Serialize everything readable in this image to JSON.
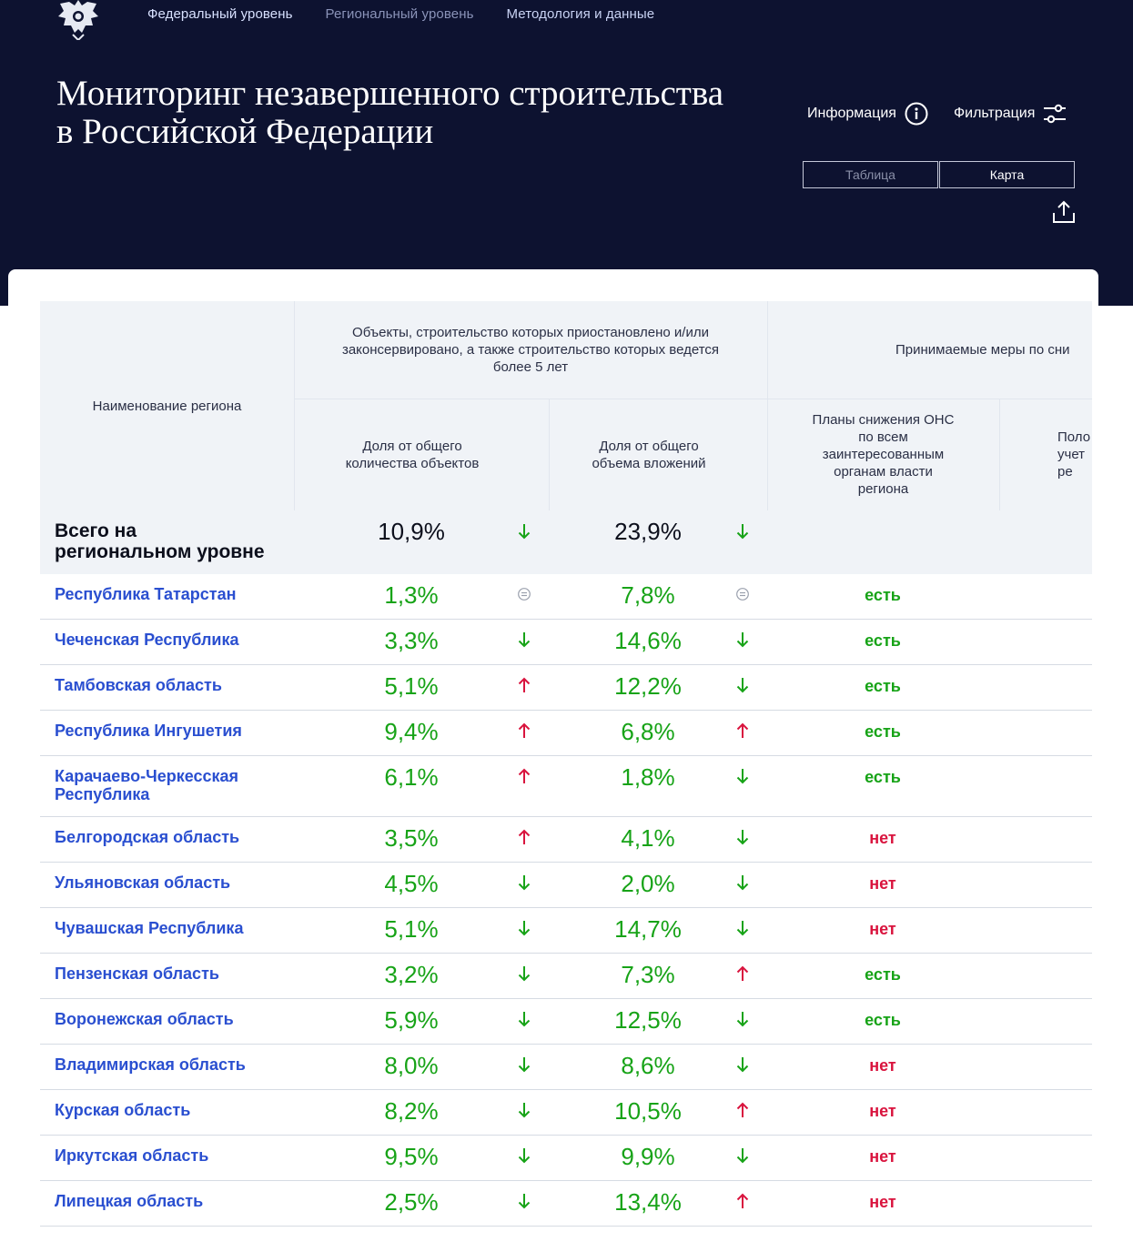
{
  "nav": {
    "federal": "Федеральный уровень",
    "regional": "Региональный уровень",
    "methodology": "Методология и данные"
  },
  "header": {
    "title_line1": "Мониторинг незавершенного строительства",
    "title_line2": "в Российской Федерации",
    "info_label": "Информация",
    "filter_label": "Фильтрация",
    "view_table": "Таблица",
    "view_map": "Карта"
  },
  "table": {
    "col_region": "Наименование региона",
    "group_objects": "Объекты, строительство которых приостановлено и/или законсервировано, а также строительство которых ведется более 5 лет",
    "group_measures": "Принимаемые меры по сни",
    "col_share_count": "Доля от общего количества объектов",
    "col_share_invest": "Доля от общего объема вложений",
    "col_plans": "Планы снижения ОНС по всем заинтересованным органам власти региона",
    "col_next": "Поло учет ре",
    "total": {
      "name_line1": "Всего на",
      "name_line2": "региональном уровне",
      "share_count": "10,9%",
      "share_count_trend": "down",
      "share_invest": "23,9%",
      "share_invest_trend": "down"
    },
    "rows": [
      {
        "region": "Республика Татарстан",
        "share_count": "1,3%",
        "count_trend": "equal",
        "share_invest": "7,8%",
        "invest_trend": "equal",
        "plans": "есть"
      },
      {
        "region": "Чеченская Республика",
        "share_count": "3,3%",
        "count_trend": "down",
        "share_invest": "14,6%",
        "invest_trend": "down",
        "plans": "есть"
      },
      {
        "region": "Тамбовская область",
        "share_count": "5,1%",
        "count_trend": "up",
        "share_invest": "12,2%",
        "invest_trend": "down",
        "plans": "есть"
      },
      {
        "region": "Республика Ингушетия",
        "share_count": "9,4%",
        "count_trend": "up",
        "share_invest": "6,8%",
        "invest_trend": "up",
        "plans": "есть"
      },
      {
        "region": "Карачаево-Черкесская Республика",
        "share_count": "6,1%",
        "count_trend": "up",
        "share_invest": "1,8%",
        "invest_trend": "down",
        "plans": "есть"
      },
      {
        "region": "Белгородская область",
        "share_count": "3,5%",
        "count_trend": "up",
        "share_invest": "4,1%",
        "invest_trend": "down",
        "plans": "нет"
      },
      {
        "region": "Ульяновская область",
        "share_count": "4,5%",
        "count_trend": "down",
        "share_invest": "2,0%",
        "invest_trend": "down",
        "plans": "нет"
      },
      {
        "region": "Чувашская Республика",
        "share_count": "5,1%",
        "count_trend": "down",
        "share_invest": "14,7%",
        "invest_trend": "down",
        "plans": "нет"
      },
      {
        "region": "Пензенская область",
        "share_count": "3,2%",
        "count_trend": "down",
        "share_invest": "7,3%",
        "invest_trend": "up",
        "plans": "есть"
      },
      {
        "region": "Воронежская область",
        "share_count": "5,9%",
        "count_trend": "down",
        "share_invest": "12,5%",
        "invest_trend": "down",
        "plans": "есть"
      },
      {
        "region": "Владимирская область",
        "share_count": "8,0%",
        "count_trend": "down",
        "share_invest": "8,6%",
        "invest_trend": "down",
        "plans": "нет"
      },
      {
        "region": "Курская область",
        "share_count": "8,2%",
        "count_trend": "down",
        "share_invest": "10,5%",
        "invest_trend": "up",
        "plans": "нет"
      },
      {
        "region": "Иркутская область",
        "share_count": "9,5%",
        "count_trend": "down",
        "share_invest": "9,9%",
        "invest_trend": "down",
        "plans": "нет"
      },
      {
        "region": "Липецкая область",
        "share_count": "2,5%",
        "count_trend": "down",
        "share_invest": "13,4%",
        "invest_trend": "up",
        "plans": "нет"
      }
    ]
  },
  "colors": {
    "header_bg": "#0d1230",
    "link_blue": "#2a4fd0",
    "good_green": "#17a317",
    "bad_red": "#d9143e",
    "header_cell_bg": "#f0f3f7"
  },
  "icons": {
    "logo": "double-headed-eagle-icon",
    "info": "info-circle-icon",
    "filter": "sliders-icon",
    "export": "upload-icon",
    "trend_down": "arrow-down-icon",
    "trend_up": "arrow-up-icon",
    "trend_equal": "equal-circle-icon"
  }
}
